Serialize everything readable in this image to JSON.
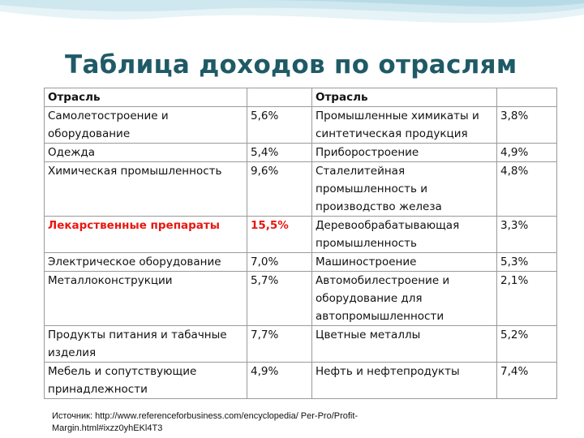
{
  "slide": {
    "title": "Таблица доходов по отраслям",
    "source": "Источник: http://www.referenceforbusiness.com/encyclopedia/ Per-Pro/Profit-Margin.html#ixzz0yhEKl4T3"
  },
  "table": {
    "header_left": "Отрасль",
    "header_right": "Отрасль",
    "rows": [
      {
        "left_name": "Самолетостроение и оборудование",
        "left_value": "5,6%",
        "right_name": "Промышленные химикаты и синтетическая продукция",
        "right_value": "3,8%"
      },
      {
        "left_name": "Одежда",
        "left_value": "5,4%",
        "right_name": "Приборостроение",
        "right_value": "4,9%"
      },
      {
        "left_name": "Химическая промышленность",
        "left_value": "9,6%",
        "right_name": "Сталелитейная промышленность и производство железа",
        "right_value": "4,8%"
      },
      {
        "left_name": "Лекарственные препараты",
        "left_value": "15,5%",
        "right_name": "Деревообрабатывающая промышленность",
        "right_value": "3,3%"
      },
      {
        "left_name": "Электрическое оборудование",
        "left_value": "7,0%",
        "right_name": "Машиностроение",
        "right_value": "5,3%"
      },
      {
        "left_name": "Металлоконструкции",
        "left_value": "5,7%",
        "right_name": "Автомобилестроение и оборудование для автопромышленности",
        "right_value": "2,1%"
      },
      {
        "left_name": "Продукты питания и табачные изделия",
        "left_value": "7,7%",
        "right_name": "Цветные металлы",
        "right_value": "5,2%"
      },
      {
        "left_name": "Мебель и сопутствующие принадлежности",
        "left_value": "4,9%",
        "right_name": "Нефть и нефтепродукты",
        "right_value": "7,4%"
      }
    ]
  },
  "colors": {
    "title": "#1f5a66",
    "highlight": "#e8170f",
    "wave_light": "#d9ecf2",
    "wave_mid": "#bfe0ea"
  }
}
